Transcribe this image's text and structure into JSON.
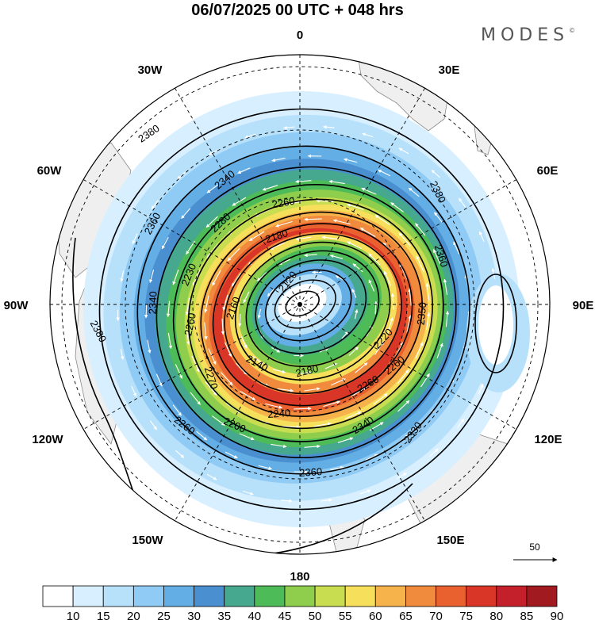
{
  "title": "06/07/2025  00 UTC  + 048 hrs",
  "brand": {
    "name": "MODES",
    "mark": "©"
  },
  "longitude_labels": [
    {
      "text": "0",
      "lon": 0
    },
    {
      "text": "30E",
      "lon": 30
    },
    {
      "text": "60E",
      "lon": 60
    },
    {
      "text": "90E",
      "lon": 90
    },
    {
      "text": "120E",
      "lon": 120
    },
    {
      "text": "150E",
      "lon": 150
    },
    {
      "text": "180",
      "lon": 180
    },
    {
      "text": "150W",
      "lon": -150
    },
    {
      "text": "120W",
      "lon": -120
    },
    {
      "text": "90W",
      "lon": -90
    },
    {
      "text": "60W",
      "lon": -60
    },
    {
      "text": "30W",
      "lon": -30
    }
  ],
  "contour_labels": [
    "2380",
    "2360",
    "2340",
    "2280",
    "2260",
    "2180",
    "2120",
    "2230",
    "2340",
    "2260",
    "2160",
    "2140",
    "2270",
    "2200",
    "2240",
    "2180",
    "2260",
    "2220",
    "2350",
    "2360",
    "2330",
    "2380",
    "2340",
    "2360",
    "2380",
    "2260",
    "2260"
  ],
  "colorbar": {
    "labels": [
      "10",
      "15",
      "20",
      "25",
      "30",
      "35",
      "40",
      "45",
      "50",
      "55",
      "60",
      "65",
      "70",
      "75",
      "80",
      "85",
      "90"
    ],
    "colors": [
      "#ffffff",
      "#d7efff",
      "#b7e1fb",
      "#8fcbf4",
      "#64aee6",
      "#4a8fd0",
      "#45a88f",
      "#4dbb57",
      "#8fce4d",
      "#c9dd50",
      "#f6df5a",
      "#f6b24b",
      "#f08a3c",
      "#e9612f",
      "#d93628",
      "#c4202b",
      "#a11a20"
    ]
  },
  "reference_vector": {
    "label": "50"
  },
  "colors": {
    "land": "#f0f0f0",
    "frame": "#000000",
    "wind_arrow": "#ffffff",
    "contour": "#000000"
  }
}
